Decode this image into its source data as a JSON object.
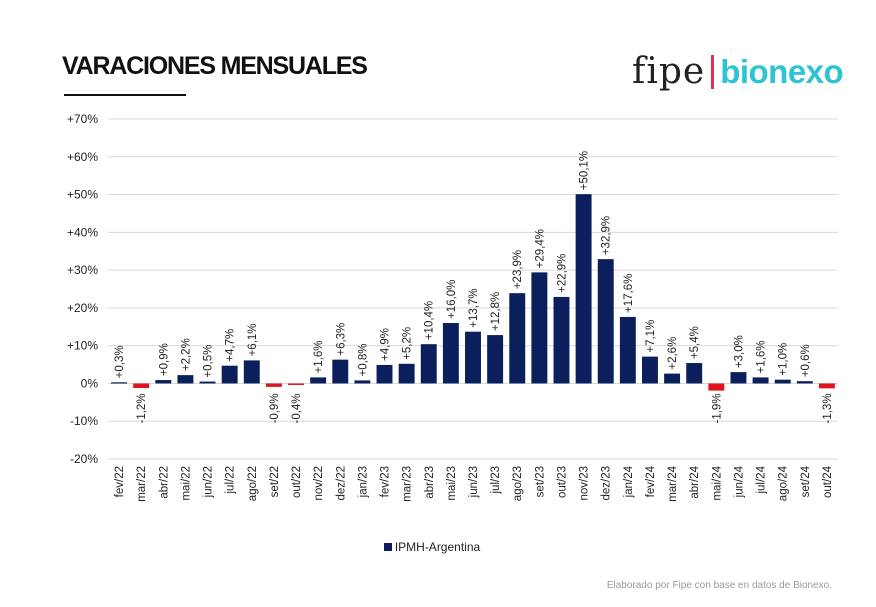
{
  "header": {
    "title": "VARACIONES MENSUALES"
  },
  "logo": {
    "part1": "fipe",
    "part2": "bionexo"
  },
  "footnote": "Elaborado por Fipe con base en datos de Bionexo.",
  "colors": {
    "positive": "#0b1f5c",
    "negative": "#e0141c",
    "grid": "#d9d9d9",
    "text": "#222222"
  },
  "chart_data": {
    "type": "bar",
    "title": "",
    "xlabel": "",
    "ylabel": "",
    "ylim": [
      -20,
      70
    ],
    "yticks": [
      -20,
      -10,
      0,
      10,
      20,
      30,
      40,
      50,
      60,
      70
    ],
    "ytick_labels": [
      "-20%",
      "-10%",
      "0%",
      "+10%",
      "+20%",
      "+30%",
      "+40%",
      "+50%",
      "+60%",
      "+70%"
    ],
    "grid": true,
    "legend": "bottom-center",
    "categories": [
      "fev/22",
      "mar/22",
      "abr/22",
      "mai/22",
      "jun/22",
      "jul/22",
      "ago/22",
      "set/22",
      "out/22",
      "nov/22",
      "dez/22",
      "jan/23",
      "fev/23",
      "mar/23",
      "abr/23",
      "mai/23",
      "jun/23",
      "jul/23",
      "ago/23",
      "set/23",
      "out/23",
      "nov/23",
      "dez/23",
      "jan/24",
      "fev/24",
      "mar/24",
      "abr/24",
      "mai/24",
      "jun/24",
      "jul/24",
      "ago/24",
      "set/24",
      "out/24"
    ],
    "series": [
      {
        "name": "IPMH-Argentina",
        "values": [
          0.3,
          -1.2,
          0.9,
          2.2,
          0.5,
          4.7,
          6.1,
          -0.9,
          -0.4,
          1.6,
          6.3,
          0.8,
          4.9,
          5.2,
          10.4,
          16.0,
          13.7,
          12.8,
          23.9,
          29.4,
          22.9,
          50.1,
          32.9,
          17.6,
          7.1,
          2.6,
          5.4,
          -1.9,
          3.0,
          1.6,
          1.0,
          0.6,
          -1.3
        ],
        "labels": [
          "+0,3%",
          "-1,2%",
          "+0,9%",
          "+2,2%",
          "+0,5%",
          "+4,7%",
          "+6,1%",
          "-0,9%",
          "-0,4%",
          "+1,6%",
          "+6,3%",
          "+0,8%",
          "+4,9%",
          "+5,2%",
          "+10,4%",
          "+16,0%",
          "+13,7%",
          "+12,8%",
          "+23,9%",
          "+29,4%",
          "+22,9%",
          "+50,1%",
          "+32,9%",
          "+17,6%",
          "+7,1%",
          "+2,6%",
          "+5,4%",
          "-1,9%",
          "+3,0%",
          "+1,6%",
          "+1,0%",
          "+0,6%",
          "-1,3%"
        ]
      }
    ]
  }
}
